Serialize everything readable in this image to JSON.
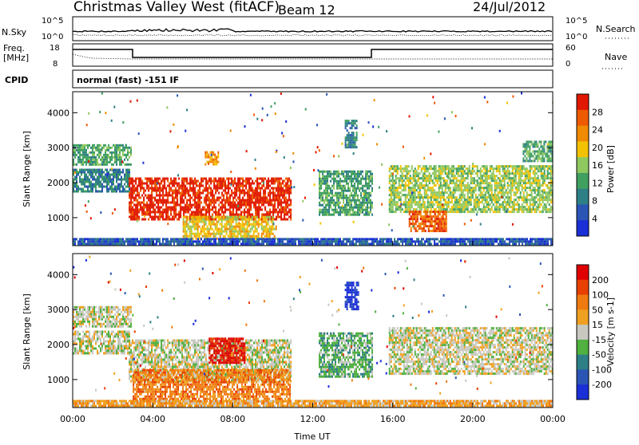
{
  "header": {
    "title": "Christmas Valley West (fitACF)",
    "beam": "Beam 12",
    "date": "24/Jul/2012"
  },
  "top_panels": {
    "nsky_label": "N.Sky",
    "nsky_ticks": [
      "10^5",
      "10^0"
    ],
    "nsearch_label": "N.Search",
    "nsearch_ticks": [
      "10^5",
      "10^0"
    ],
    "freq_label": "Freq.",
    "freq_unit": "[MHz]",
    "freq_ticks": [
      "18",
      "8"
    ],
    "nave_label": "Nave",
    "nave_ticks": [
      "60",
      "0"
    ],
    "cpid_label": "CPID",
    "cpid_text": "normal (fast) -151 IF"
  },
  "colors": {
    "power_scale": [
      "#1a2fd6",
      "#2a55b5",
      "#2f7f86",
      "#40a060",
      "#90c860",
      "#f2c200",
      "#f08a00",
      "#ee5a00",
      "#e01800"
    ],
    "velocity_scale": [
      "#1a2fd6",
      "#2a55b5",
      "#2f7f86",
      "#50b040",
      "#c8c8c0",
      "#f0a020",
      "#ef7a10",
      "#e84000",
      "#e00000"
    ]
  },
  "chart_data": [
    {
      "type": "heatmap",
      "name": "power-panel",
      "ylabel": "Slant Range [km]",
      "xlabel": "",
      "x_ticks": [
        "00:00",
        "04:00",
        "08:00",
        "12:00",
        "16:00",
        "20:00",
        "00:00"
      ],
      "y_ticks": [
        1000,
        2000,
        3000,
        4000
      ],
      "ylim": [
        200,
        4600
      ],
      "xlim_hours": [
        0,
        24
      ],
      "colorbar_label": "Power [dB]",
      "colorbar_ticks": [
        "28",
        "24",
        "20",
        "16",
        "12",
        "8",
        "4"
      ],
      "regions": [
        {
          "t0": 0.0,
          "t1": 2.9,
          "r0": 2500,
          "r1": 3100,
          "level": 3
        },
        {
          "t0": 0.0,
          "t1": 2.8,
          "r0": 1750,
          "r1": 2400,
          "level": 2
        },
        {
          "t0": 2.8,
          "t1": 10.9,
          "r0": 950,
          "r1": 2150,
          "level": 8
        },
        {
          "t0": 5.5,
          "t1": 10.2,
          "r0": 400,
          "r1": 1050,
          "level": 5
        },
        {
          "t0": 6.6,
          "t1": 7.3,
          "r0": 2500,
          "r1": 2900,
          "level": 6
        },
        {
          "t0": 12.3,
          "t1": 15.0,
          "r0": 1100,
          "r1": 2350,
          "level": 3
        },
        {
          "t0": 13.6,
          "t1": 14.2,
          "r0": 3000,
          "r1": 3800,
          "level": 2
        },
        {
          "t0": 15.8,
          "t1": 24.0,
          "r0": 1200,
          "r1": 2500,
          "level": 4
        },
        {
          "t0": 16.8,
          "t1": 18.7,
          "r0": 600,
          "r1": 1200,
          "level": 7
        },
        {
          "t0": 22.5,
          "t1": 24.0,
          "r0": 2600,
          "r1": 3200,
          "level": 3
        },
        {
          "t0": 0.0,
          "t1": 24.0,
          "r0": 200,
          "r1": 420,
          "level": 1
        }
      ]
    },
    {
      "type": "heatmap",
      "name": "velocity-panel",
      "ylabel": "Slant Range [km]",
      "xlabel": "Time UT",
      "x_ticks": [
        "00:00",
        "04:00",
        "08:00",
        "12:00",
        "16:00",
        "20:00",
        "00:00"
      ],
      "y_ticks": [
        1000,
        2000,
        3000,
        4000
      ],
      "ylim": [
        200,
        4600
      ],
      "xlim_hours": [
        0,
        24
      ],
      "colorbar_label": "Velocity [m s-1]",
      "colorbar_ticks": [
        "200",
        "100",
        "50",
        "15",
        "-15",
        "-50",
        "-100",
        "-200"
      ],
      "regions": [
        {
          "t0": 0.0,
          "t1": 2.9,
          "r0": 2500,
          "r1": 3100,
          "level": 4
        },
        {
          "t0": 0.0,
          "t1": 2.8,
          "r0": 1750,
          "r1": 2400,
          "level": 4
        },
        {
          "t0": 2.8,
          "t1": 10.9,
          "r0": 950,
          "r1": 2150,
          "level": 4
        },
        {
          "t0": 3.0,
          "t1": 10.9,
          "r0": 400,
          "r1": 1300,
          "level": 6
        },
        {
          "t0": 6.8,
          "t1": 8.6,
          "r0": 1500,
          "r1": 2200,
          "level": 8
        },
        {
          "t0": 12.3,
          "t1": 15.0,
          "r0": 1100,
          "r1": 2350,
          "level": 3
        },
        {
          "t0": 13.6,
          "t1": 14.3,
          "r0": 3000,
          "r1": 3800,
          "level": 0
        },
        {
          "t0": 15.8,
          "t1": 24.0,
          "r0": 1200,
          "r1": 2500,
          "level": 4
        },
        {
          "t0": 0.0,
          "t1": 24.0,
          "r0": 200,
          "r1": 420,
          "level": 5
        }
      ]
    }
  ]
}
